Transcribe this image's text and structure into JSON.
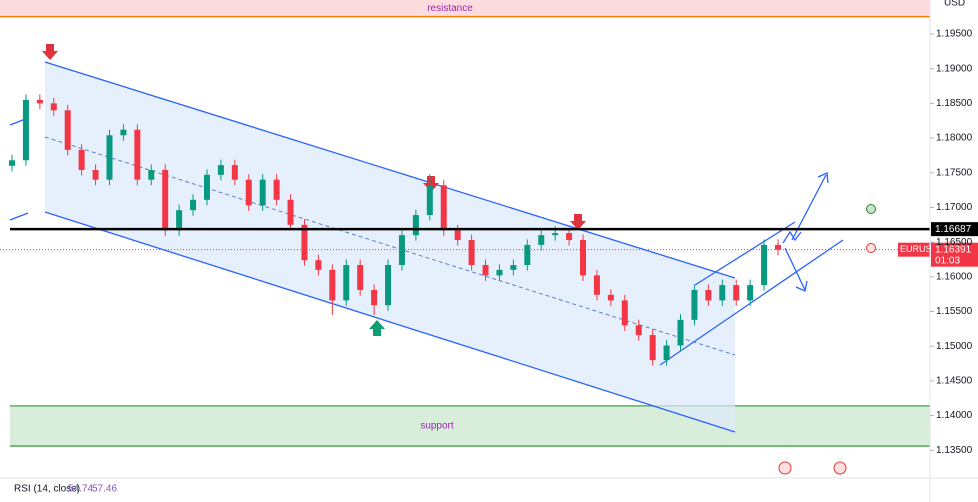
{
  "chart_data": {
    "type": "candlestick",
    "axis_unit": "USD",
    "open": [
      1.176,
      1.1768,
      1.1855,
      1.185,
      1.184,
      1.1783,
      1.1754,
      1.174,
      1.1804,
      1.1812,
      1.174,
      1.1754,
      1.1667,
      1.1696,
      1.1711,
      1.1747,
      1.1761,
      1.174,
      1.1703,
      1.174,
      1.1711,
      1.1675,
      1.1624,
      1.161,
      1.1566,
      1.1617,
      1.1581,
      1.1559,
      1.1617,
      1.166,
      1.1689,
      1.1732,
      1.1667,
      1.1653,
      1.1617,
      1.1602,
      1.161,
      1.1617,
      1.1646,
      1.166,
      1.1663,
      1.1653,
      1.1602,
      1.1574,
      1.1566,
      1.153,
      1.1516,
      1.148,
      1.1501,
      1.1538,
      1.1581,
      1.1566,
      1.1588,
      1.1566,
      1.1588,
      1.1646
    ],
    "high": [
      1.1776,
      1.1863,
      1.1863,
      1.1858,
      1.1848,
      1.1791,
      1.1762,
      1.1812,
      1.182,
      1.182,
      1.1762,
      1.1762,
      1.1704,
      1.1719,
      1.1755,
      1.1769,
      1.1769,
      1.1748,
      1.1748,
      1.1748,
      1.1719,
      1.1683,
      1.1632,
      1.1618,
      1.1625,
      1.1625,
      1.1589,
      1.1625,
      1.1668,
      1.1697,
      1.1748,
      1.174,
      1.1675,
      1.1661,
      1.1625,
      1.1618,
      1.1625,
      1.1654,
      1.1668,
      1.1673,
      1.1671,
      1.1661,
      1.161,
      1.1582,
      1.1574,
      1.1538,
      1.1524,
      1.1509,
      1.1546,
      1.1589,
      1.1589,
      1.1596,
      1.1596,
      1.1596,
      1.1654,
      1.1654
    ],
    "low": [
      1.1752,
      1.176,
      1.1842,
      1.1832,
      1.1775,
      1.1746,
      1.1732,
      1.1732,
      1.1796,
      1.1732,
      1.1732,
      1.1659,
      1.1659,
      1.1688,
      1.1703,
      1.1739,
      1.1732,
      1.1695,
      1.1695,
      1.1703,
      1.1667,
      1.1616,
      1.1602,
      1.1545,
      1.1558,
      1.1573,
      1.1545,
      1.1551,
      1.1609,
      1.1652,
      1.1681,
      1.1659,
      1.1645,
      1.1609,
      1.1594,
      1.1594,
      1.1602,
      1.1609,
      1.1638,
      1.1652,
      1.1645,
      1.1594,
      1.1566,
      1.1558,
      1.1522,
      1.1508,
      1.1472,
      1.1472,
      1.1493,
      1.153,
      1.1558,
      1.1558,
      1.1558,
      1.1558,
      1.158,
      1.1631
    ],
    "close": [
      1.1768,
      1.1855,
      1.185,
      1.184,
      1.1783,
      1.1754,
      1.174,
      1.1804,
      1.1812,
      1.174,
      1.1754,
      1.1667,
      1.1696,
      1.1711,
      1.1747,
      1.1761,
      1.174,
      1.1703,
      1.174,
      1.1711,
      1.1675,
      1.1624,
      1.161,
      1.1566,
      1.1617,
      1.1581,
      1.1559,
      1.1617,
      1.166,
      1.1689,
      1.1732,
      1.1667,
      1.1653,
      1.1617,
      1.1602,
      1.161,
      1.1617,
      1.1646,
      1.166,
      1.1663,
      1.1653,
      1.1602,
      1.1574,
      1.1566,
      1.153,
      1.1516,
      1.148,
      1.1501,
      1.1538,
      1.1581,
      1.1566,
      1.1588,
      1.1566,
      1.1588,
      1.1646,
      1.1639
    ],
    "up_color": "#089981",
    "down_color": "#f23645",
    "ylim": [
      1.131,
      1.1999
    ],
    "yticks": [
      {
        "value": 1.195,
        "label": "1.19500"
      },
      {
        "value": 1.19,
        "label": "1.19000"
      },
      {
        "value": 1.185,
        "label": "1.18500"
      },
      {
        "value": 1.18,
        "label": "1.18000"
      },
      {
        "value": 1.175,
        "label": "1.17500"
      },
      {
        "value": 1.17,
        "label": "1.17000"
      },
      {
        "value": 1.165,
        "label": "1.16500"
      },
      {
        "value": 1.16,
        "label": "1.16000"
      },
      {
        "value": 1.155,
        "label": "1.15500"
      },
      {
        "value": 1.15,
        "label": "1.15000"
      },
      {
        "value": 1.145,
        "label": "1.14500"
      },
      {
        "value": 1.14,
        "label": "1.14000"
      },
      {
        "value": 1.135,
        "label": "1.13500"
      }
    ],
    "resistance": {
      "label": "resistance",
      "low": 1.1975,
      "high": 1.1999
    },
    "support": {
      "label": "support",
      "low": 1.1356,
      "high": 1.1414
    },
    "key_level": 1.16687,
    "current": {
      "symbol": "EURUSD",
      "price": 1.16391,
      "countdown": "01:03"
    },
    "rsi": {
      "label": "RSI (14, close)",
      "values": [
        54.74,
        57.46
      ]
    }
  }
}
